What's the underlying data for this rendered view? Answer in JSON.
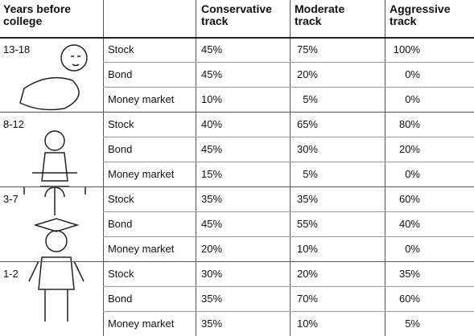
{
  "header": {
    "years": "Years before college",
    "tracks": [
      "Conservative track",
      "Moderate track",
      "Aggressive track"
    ]
  },
  "groups": [
    {
      "years": "13-18",
      "rows": [
        {
          "asset": "Stock",
          "values": [
            "45%",
            "75%",
            "100%"
          ]
        },
        {
          "asset": "Bond",
          "values": [
            "45%",
            "20%",
            "0%"
          ]
        },
        {
          "asset": "Money market",
          "values": [
            "10%",
            "5%",
            "0%"
          ]
        }
      ]
    },
    {
      "years": "8-12",
      "rows": [
        {
          "asset": "Stock",
          "values": [
            "40%",
            "65%",
            "80%"
          ]
        },
        {
          "asset": "Bond",
          "values": [
            "45%",
            "30%",
            "20%"
          ]
        },
        {
          "asset": "Money market",
          "values": [
            "15%",
            "5%",
            "0%"
          ]
        }
      ]
    },
    {
      "years": "3-7",
      "rows": [
        {
          "asset": "Stock",
          "values": [
            "35%",
            "35%",
            "60%"
          ]
        },
        {
          "asset": "Bond",
          "values": [
            "45%",
            "55%",
            "40%"
          ]
        },
        {
          "asset": "Money market",
          "values": [
            "20%",
            "10%",
            "0%"
          ]
        }
      ]
    },
    {
      "years": "1-2",
      "rows": [
        {
          "asset": "Stock",
          "values": [
            "30%",
            "20%",
            "35%"
          ]
        },
        {
          "asset": "Bond",
          "values": [
            "35%",
            "70%",
            "60%"
          ]
        },
        {
          "asset": "Money market",
          "values": [
            "35%",
            "10%",
            "5%"
          ]
        }
      ]
    }
  ]
}
